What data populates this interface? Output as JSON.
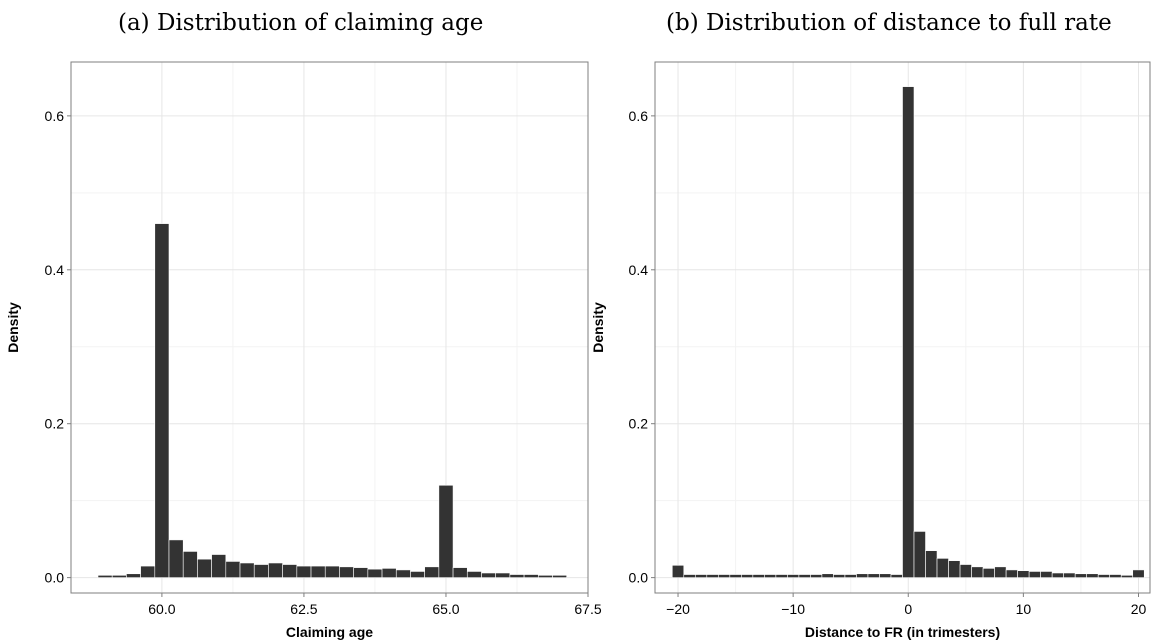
{
  "panels": [
    {
      "title": "(a) Distribution of claiming age"
    },
    {
      "title": "(b) Distribution of distance to full rate"
    }
  ],
  "colors": {
    "bar": "#333333",
    "bar_outline": "#ffffff",
    "grid": "#e6e6e6",
    "frame": "#7f7f7f"
  },
  "chart_data": [
    {
      "type": "bar",
      "title": "(a) Distribution of claiming age",
      "xlabel": "Claiming age",
      "ylabel": "Density",
      "xlim": [
        58.4,
        67.5
      ],
      "ylim": [
        -0.02,
        0.67
      ],
      "xticks": [
        60.0,
        62.5,
        65.0,
        67.5
      ],
      "xtick_labels": [
        "60.0",
        "62.5",
        "65.0",
        "67.5"
      ],
      "yticks": [
        0.0,
        0.2,
        0.4,
        0.6
      ],
      "ytick_labels": [
        "0.0",
        "0.2",
        "0.4",
        "0.6"
      ],
      "grid": true,
      "bin_width": 0.25,
      "bins_start": [
        58.875,
        59.125,
        59.375,
        59.625,
        59.875,
        60.125,
        60.375,
        60.625,
        60.875,
        61.125,
        61.375,
        61.625,
        61.875,
        62.125,
        62.375,
        62.625,
        62.875,
        63.125,
        63.375,
        63.625,
        63.875,
        64.125,
        64.375,
        64.625,
        64.875,
        65.125,
        65.375,
        65.625,
        65.875,
        66.125,
        66.375,
        66.625,
        66.875
      ],
      "values": [
        0.003,
        0.003,
        0.005,
        0.015,
        0.46,
        0.049,
        0.034,
        0.024,
        0.03,
        0.021,
        0.019,
        0.017,
        0.019,
        0.017,
        0.015,
        0.015,
        0.015,
        0.014,
        0.013,
        0.011,
        0.012,
        0.01,
        0.008,
        0.014,
        0.12,
        0.013,
        0.008,
        0.006,
        0.006,
        0.004,
        0.004,
        0.003,
        0.003
      ]
    },
    {
      "type": "bar",
      "title": "(b) Distribution of distance to full rate",
      "xlabel": "Distance to FR (in trimesters)",
      "ylabel": "Density",
      "xlim": [
        -22,
        21
      ],
      "ylim": [
        -0.02,
        0.67
      ],
      "xticks": [
        -20,
        -10,
        0,
        10,
        20
      ],
      "xtick_labels": [
        "−20",
        "−10",
        "0",
        "10",
        "20"
      ],
      "yticks": [
        0.0,
        0.2,
        0.4,
        0.6
      ],
      "ytick_labels": [
        "0.0",
        "0.2",
        "0.4",
        "0.6"
      ],
      "grid": true,
      "bin_width": 1,
      "bins_start": [
        -20.5,
        -19.5,
        -18.5,
        -17.5,
        -16.5,
        -15.5,
        -14.5,
        -13.5,
        -12.5,
        -11.5,
        -10.5,
        -9.5,
        -8.5,
        -7.5,
        -6.5,
        -5.5,
        -4.5,
        -3.5,
        -2.5,
        -1.5,
        -0.5,
        0.5,
        1.5,
        2.5,
        3.5,
        4.5,
        5.5,
        6.5,
        7.5,
        8.5,
        9.5,
        10.5,
        11.5,
        12.5,
        13.5,
        14.5,
        15.5,
        16.5,
        17.5,
        18.5,
        19.5
      ],
      "values": [
        0.016,
        0.004,
        0.004,
        0.004,
        0.004,
        0.004,
        0.004,
        0.004,
        0.004,
        0.004,
        0.004,
        0.004,
        0.004,
        0.005,
        0.004,
        0.004,
        0.005,
        0.005,
        0.005,
        0.004,
        0.638,
        0.06,
        0.035,
        0.025,
        0.022,
        0.017,
        0.014,
        0.012,
        0.014,
        0.01,
        0.009,
        0.008,
        0.008,
        0.006,
        0.006,
        0.005,
        0.005,
        0.004,
        0.004,
        0.003,
        0.01
      ]
    }
  ]
}
